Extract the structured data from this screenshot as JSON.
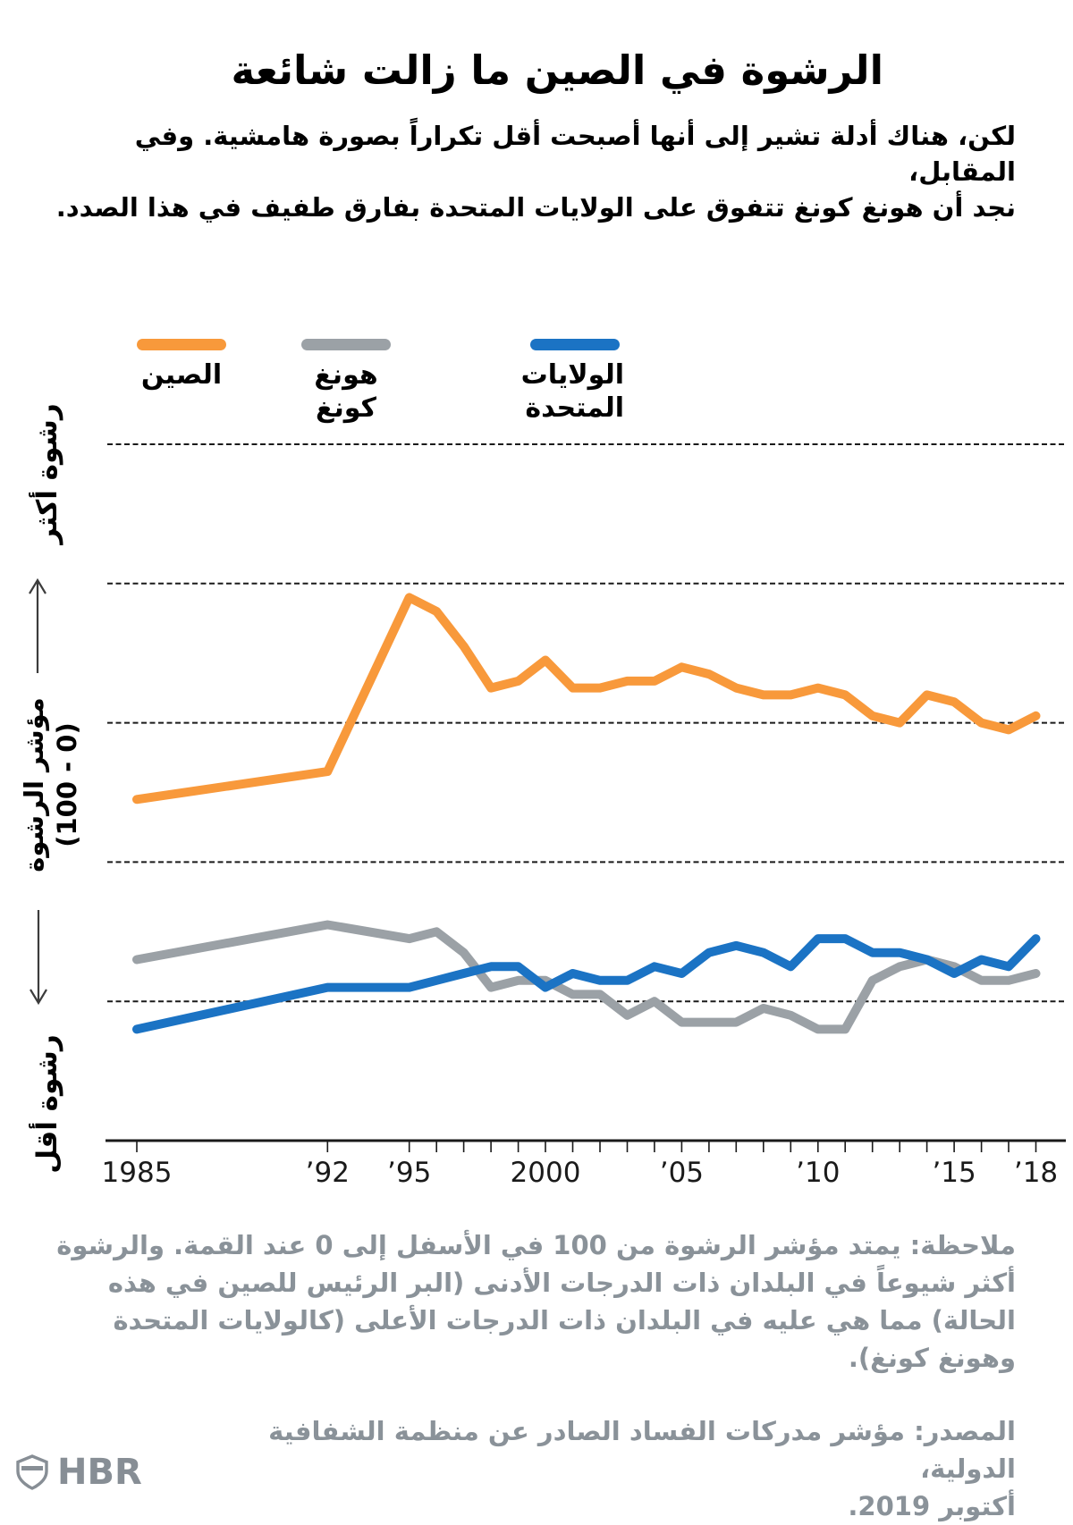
{
  "header": {
    "title": "الرشوة في الصين ما زالت شائعة",
    "subtitle_lines": [
      "لكن، هناك أدلة تشير إلى أنها أصبحت أقل تكراراً بصورة هامشية. وفي المقابل،",
      "نجد أن هونغ كونغ تتفوق على الولايات المتحدة بفارق طفيف في هذا الصدد."
    ]
  },
  "legend": {
    "items": [
      {
        "slug": "china",
        "color": "#F8993B",
        "label_lines": [
          "الصين",
          ""
        ]
      },
      {
        "slug": "hong-kong",
        "color": "#9BA1A6",
        "label_lines": [
          "هونغ",
          "كونغ"
        ]
      },
      {
        "slug": "united-states",
        "color": "#1B73C4",
        "label_lines": [
          "الولايات",
          "المتحدة"
        ]
      }
    ]
  },
  "y_axis_labels": {
    "top_direction": "رشوة أكثر",
    "index_line_1": "مؤشر الرشوة",
    "index_line_2": "(0 - 100)",
    "bottom_direction": "رشوة أقل"
  },
  "chart_data": {
    "type": "line",
    "title": "الرشوة في الصين ما زالت شائعة",
    "x_years": [
      1985,
      1992,
      1995,
      1996,
      1997,
      1998,
      1999,
      2000,
      2001,
      2002,
      2003,
      2004,
      2005,
      2006,
      2007,
      2008,
      2009,
      2010,
      2011,
      2012,
      2013,
      2014,
      2015,
      2016,
      2017,
      2018
    ],
    "x_tick_labels": [
      {
        "year": 1985,
        "label": "1985"
      },
      {
        "year": 1992,
        "label": "’92"
      },
      {
        "year": 1995,
        "label": "’95"
      },
      {
        "year": 2000,
        "label": "2000"
      },
      {
        "year": 2005,
        "label": "’05"
      },
      {
        "year": 2010,
        "label": "’10"
      },
      {
        "year": 2015,
        "label": "’15"
      },
      {
        "year": 2018,
        "label": "’18"
      }
    ],
    "y_axis": {
      "label": "مؤشر الرشوة (0 - 100)",
      "min": 0,
      "max": 100,
      "inverted": true,
      "gridline_values": [
        0,
        20,
        40,
        60,
        80
      ],
      "baseline_value": 100,
      "grid": "horizontal-dashed"
    },
    "legend_position": "top-left",
    "series": [
      {
        "slug": "china",
        "name": "الصين",
        "color": "#F8993B",
        "values": [
          51,
          47,
          22,
          24,
          29,
          35,
          34,
          31,
          35,
          35,
          34,
          34,
          32,
          33,
          35,
          36,
          36,
          35,
          36,
          39,
          40,
          36,
          37,
          40,
          41,
          39
        ]
      },
      {
        "slug": "hong-kong",
        "name": "هونغ كونغ",
        "color": "#9BA1A6",
        "values": [
          74,
          69,
          71,
          70,
          73,
          78,
          77,
          77,
          79,
          79,
          82,
          80,
          83,
          83,
          83,
          81,
          82,
          84,
          84,
          77,
          75,
          74,
          75,
          77,
          77,
          76
        ]
      },
      {
        "slug": "united-states",
        "name": "الولايات المتحدة",
        "color": "#1B73C4",
        "values": [
          84,
          78,
          78,
          77,
          76,
          75,
          75,
          78,
          76,
          77,
          77,
          75,
          76,
          73,
          72,
          73,
          75,
          71,
          71,
          73,
          73,
          74,
          76,
          74,
          75,
          71
        ]
      }
    ]
  },
  "note_lines": [
    "ملاحظة: يمتد مؤشر الرشوة من 100 في الأسفل إلى 0 عند القمة. والرشوة",
    "أكثر شيوعاً في البلدان ذات الدرجات الأدنى (البر الرئيس للصين في هذه",
    "الحالة) مما هي عليه في البلدان ذات الدرجات الأعلى (كالولايات المتحدة",
    "وهونغ كونغ)."
  ],
  "source_lines": [
    "المصدر: مؤشر مدركات الفساد الصادر عن منظمة الشفافية الدولية،",
    "أكتوبر 2019."
  ],
  "footer": {
    "logo_text": "HBR"
  }
}
